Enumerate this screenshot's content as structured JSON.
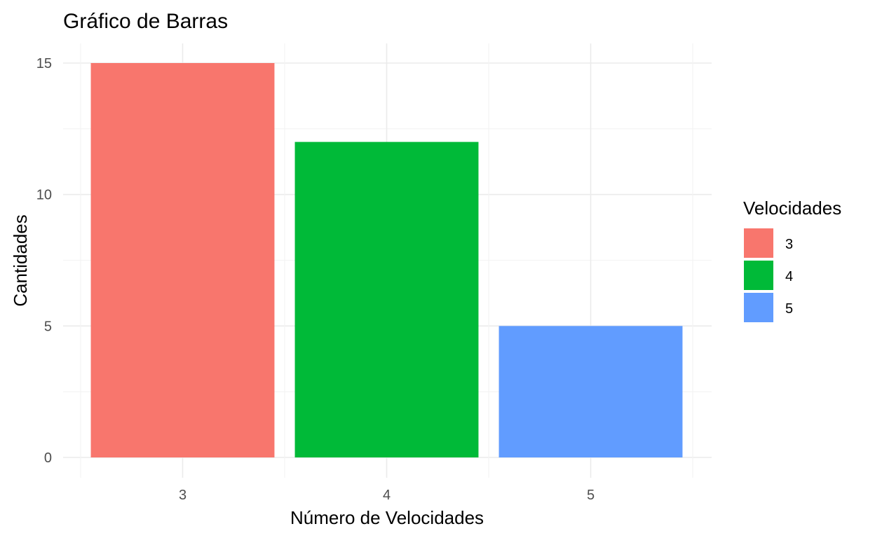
{
  "chart_data": {
    "type": "bar",
    "title": "Gráfico de Barras",
    "xlabel": "Número de Velocidades",
    "ylabel": "Cantidades",
    "categories": [
      "3",
      "4",
      "5"
    ],
    "values": [
      15,
      12,
      5
    ],
    "colors": [
      "#F8766D",
      "#00BA38",
      "#619CFF"
    ],
    "ylim": [
      0,
      15
    ],
    "yticks": [
      0,
      5,
      10,
      15
    ],
    "grid": true,
    "legend": {
      "title": "Velocidades",
      "position": "right",
      "entries": [
        "3",
        "4",
        "5"
      ]
    }
  }
}
